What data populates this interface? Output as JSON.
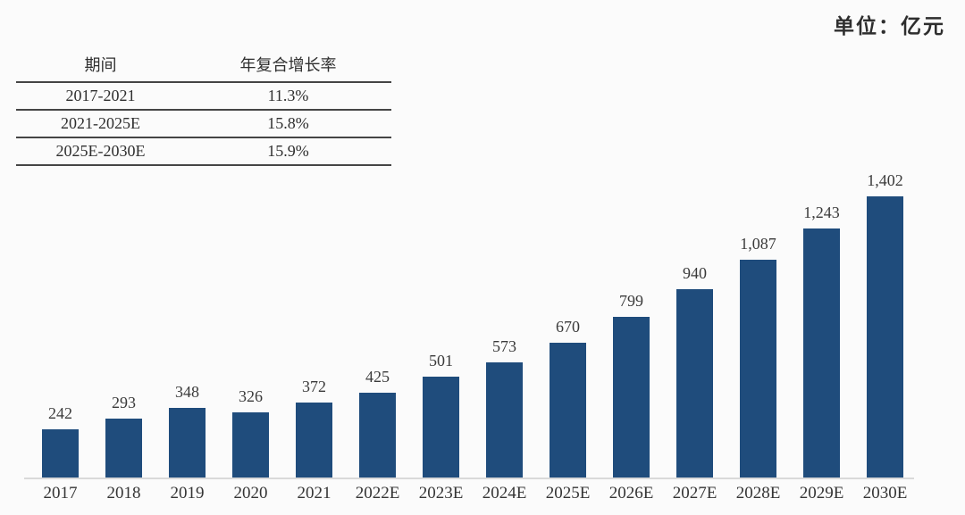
{
  "unit_label": "单位：亿元",
  "table": {
    "headers": [
      "期间",
      "年复合增长率"
    ],
    "rows": [
      {
        "period": "2017-2021",
        "cagr": "11.3%"
      },
      {
        "period": "2021-2025E",
        "cagr": "15.8%"
      },
      {
        "period": "2025E-2030E",
        "cagr": "15.9%"
      }
    ]
  },
  "chart_data": {
    "type": "bar",
    "title": "",
    "xlabel": "",
    "ylabel": "",
    "unit": "亿元",
    "categories": [
      "2017",
      "2018",
      "2019",
      "2020",
      "2021",
      "2022E",
      "2023E",
      "2024E",
      "2025E",
      "2026E",
      "2027E",
      "2028E",
      "2029E",
      "2030E"
    ],
    "values": [
      242,
      293,
      348,
      326,
      372,
      425,
      501,
      573,
      670,
      799,
      940,
      1087,
      1243,
      1402
    ],
    "value_labels": [
      "242",
      "293",
      "348",
      "326",
      "372",
      "425",
      "501",
      "573",
      "670",
      "799",
      "940",
      "1,087",
      "1,243",
      "1,402"
    ],
    "ylim": [
      0,
      1402
    ],
    "grid": false,
    "legend": "none",
    "data_labels_position": "above-bars"
  },
  "colors": {
    "bar": "#1f4c7c",
    "axis_line": "#d9d9d9",
    "table_border": "#454545",
    "text": "#2f2f2f",
    "background": "#fbfbfb"
  }
}
